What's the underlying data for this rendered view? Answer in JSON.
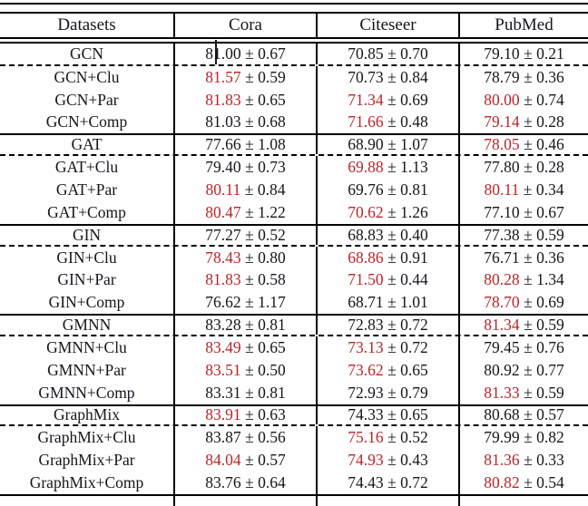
{
  "colors": {
    "best_value": "#b9252b",
    "text": "#15151f",
    "rule": "#000000"
  },
  "table": {
    "pm": "±",
    "headers": [
      "Datasets",
      "Cora",
      "Citeseer",
      "PubMed"
    ],
    "groups": [
      {
        "rows": [
          {
            "method": "GCN",
            "cells": [
              {
                "mean": "81.00",
                "std": "0.67",
                "best": false
              },
              {
                "mean": "70.85",
                "std": "0.70",
                "best": false
              },
              {
                "mean": "79.10",
                "std": "0.21",
                "best": false
              }
            ]
          },
          {
            "method": "GCN+Clu",
            "cells": [
              {
                "mean": "81.57",
                "std": "0.59",
                "best": true
              },
              {
                "mean": "70.73",
                "std": "0.84",
                "best": false
              },
              {
                "mean": "78.79",
                "std": "0.36",
                "best": false
              }
            ]
          },
          {
            "method": "GCN+Par",
            "cells": [
              {
                "mean": "81.83",
                "std": "0.65",
                "best": true
              },
              {
                "mean": "71.34",
                "std": "0.69",
                "best": true
              },
              {
                "mean": "80.00",
                "std": "0.74",
                "best": true
              }
            ]
          },
          {
            "method": "GCN+Comp",
            "cells": [
              {
                "mean": "81.03",
                "std": "0.68",
                "best": false
              },
              {
                "mean": "71.66",
                "std": "0.48",
                "best": true
              },
              {
                "mean": "79.14",
                "std": "0.28",
                "best": true
              }
            ]
          }
        ]
      },
      {
        "rows": [
          {
            "method": "GAT",
            "cells": [
              {
                "mean": "77.66",
                "std": "1.08",
                "best": false
              },
              {
                "mean": "68.90",
                "std": "1.07",
                "best": false
              },
              {
                "mean": "78.05",
                "std": "0.46",
                "best": true
              }
            ]
          },
          {
            "method": "GAT+Clu",
            "cells": [
              {
                "mean": "79.40",
                "std": "0.73",
                "best": false
              },
              {
                "mean": "69.88",
                "std": "1.13",
                "best": true
              },
              {
                "mean": "77.80",
                "std": "0.28",
                "best": false
              }
            ]
          },
          {
            "method": "GAT+Par",
            "cells": [
              {
                "mean": "80.11",
                "std": "0.84",
                "best": true
              },
              {
                "mean": "69.76",
                "std": "0.81",
                "best": false
              },
              {
                "mean": "80.11",
                "std": "0.34",
                "best": true
              }
            ]
          },
          {
            "method": "GAT+Comp",
            "cells": [
              {
                "mean": "80.47",
                "std": "1.22",
                "best": true
              },
              {
                "mean": "70.62",
                "std": "1.26",
                "best": true
              },
              {
                "mean": "77.10",
                "std": "0.67",
                "best": false
              }
            ]
          }
        ]
      },
      {
        "rows": [
          {
            "method": "GIN",
            "cells": [
              {
                "mean": "77.27",
                "std": "0.52",
                "best": false
              },
              {
                "mean": "68.83",
                "std": "0.40",
                "best": false
              },
              {
                "mean": "77.38",
                "std": "0.59",
                "best": false
              }
            ]
          },
          {
            "method": "GIN+Clu",
            "cells": [
              {
                "mean": "78.43",
                "std": "0.80",
                "best": true
              },
              {
                "mean": "68.86",
                "std": "0.91",
                "best": true
              },
              {
                "mean": "76.71",
                "std": "0.36",
                "best": false
              }
            ]
          },
          {
            "method": "GIN+Par",
            "cells": [
              {
                "mean": "81.83",
                "std": "0.58",
                "best": true
              },
              {
                "mean": "71.50",
                "std": "0.44",
                "best": true
              },
              {
                "mean": "80.28",
                "std": "1.34",
                "best": true
              }
            ]
          },
          {
            "method": "GIN+Comp",
            "cells": [
              {
                "mean": "76.62",
                "std": "1.17",
                "best": false
              },
              {
                "mean": "68.71",
                "std": "1.01",
                "best": false
              },
              {
                "mean": "78.70",
                "std": "0.69",
                "best": true
              }
            ]
          }
        ]
      },
      {
        "rows": [
          {
            "method": "GMNN",
            "cells": [
              {
                "mean": "83.28",
                "std": "0.81",
                "best": false
              },
              {
                "mean": "72.83",
                "std": "0.72",
                "best": false
              },
              {
                "mean": "81.34",
                "std": "0.59",
                "best": true
              }
            ]
          },
          {
            "method": "GMNN+Clu",
            "cells": [
              {
                "mean": "83.49",
                "std": "0.65",
                "best": true
              },
              {
                "mean": "73.13",
                "std": "0.72",
                "best": true
              },
              {
                "mean": "79.45",
                "std": "0.76",
                "best": false
              }
            ]
          },
          {
            "method": "GMNN+Par",
            "cells": [
              {
                "mean": "83.51",
                "std": "0.50",
                "best": true
              },
              {
                "mean": "73.62",
                "std": "0.65",
                "best": true
              },
              {
                "mean": "80.92",
                "std": "0.77",
                "best": false
              }
            ]
          },
          {
            "method": "GMNN+Comp",
            "cells": [
              {
                "mean": "83.31",
                "std": "0.81",
                "best": false
              },
              {
                "mean": "72.93",
                "std": "0.79",
                "best": false
              },
              {
                "mean": "81.33",
                "std": "0.59",
                "best": true
              }
            ]
          }
        ]
      },
      {
        "rows": [
          {
            "method": "GraphMix",
            "cells": [
              {
                "mean": "83.91",
                "std": "0.63",
                "best": true
              },
              {
                "mean": "74.33",
                "std": "0.65",
                "best": false
              },
              {
                "mean": "80.68",
                "std": "0.57",
                "best": false
              }
            ]
          },
          {
            "method": "GraphMix+Clu",
            "cells": [
              {
                "mean": "83.87",
                "std": "0.56",
                "best": false
              },
              {
                "mean": "75.16",
                "std": "0.52",
                "best": true
              },
              {
                "mean": "79.99",
                "std": "0.82",
                "best": false
              }
            ]
          },
          {
            "method": "GraphMix+Par",
            "cells": [
              {
                "mean": "84.04",
                "std": "0.57",
                "best": true
              },
              {
                "mean": "74.93",
                "std": "0.43",
                "best": true
              },
              {
                "mean": "81.36",
                "std": "0.33",
                "best": true
              }
            ]
          },
          {
            "method": "GraphMix+Comp",
            "cells": [
              {
                "mean": "83.76",
                "std": "0.64",
                "best": false
              },
              {
                "mean": "74.43",
                "std": "0.72",
                "best": false
              },
              {
                "mean": "80.82",
                "std": "0.54",
                "best": true
              }
            ]
          }
        ]
      }
    ]
  }
}
